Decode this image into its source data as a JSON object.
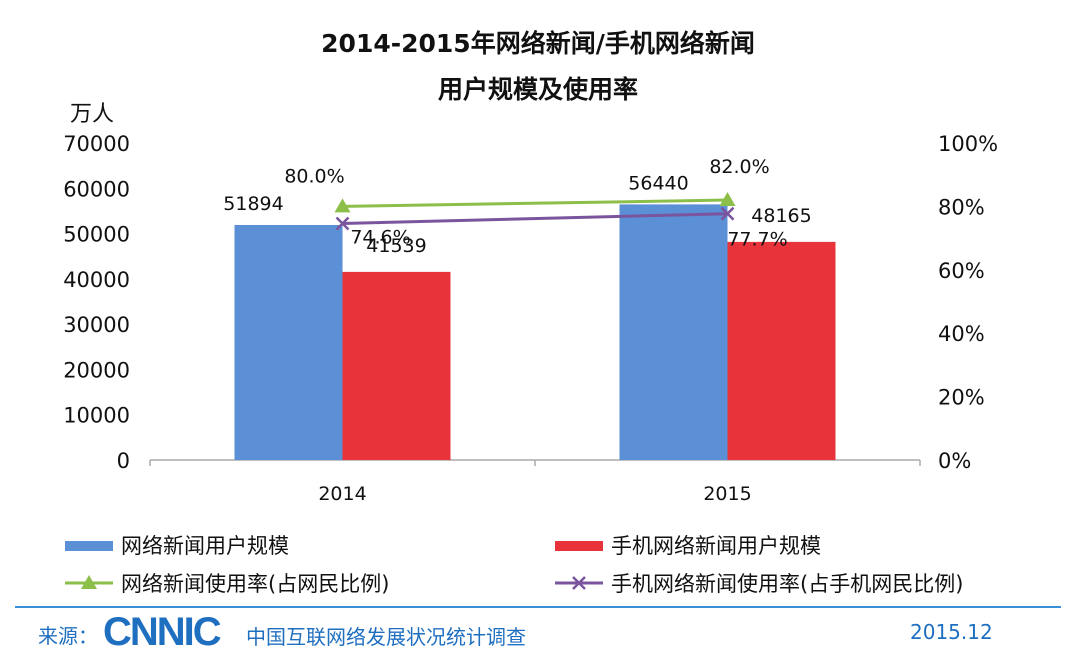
{
  "chart_data": {
    "type": "bar",
    "title": "2014-2015年网络新闻/手机网络新闻",
    "subtitle": "用户规模及使用率",
    "ylabel": "万人",
    "categories": [
      "2014",
      "2015"
    ],
    "ylim": [
      0,
      70000
    ],
    "y_ticks": [
      "70000",
      "60000",
      "50000",
      "40000",
      "30000",
      "20000",
      "10000",
      "0"
    ],
    "y2lim": [
      0,
      100
    ],
    "y2_ticks": [
      "100%",
      "80%",
      "60%",
      "40%",
      "20%",
      "0%"
    ],
    "series": [
      {
        "name": "网络新闻用户规模",
        "kind": "bar",
        "axis": "left",
        "color": "#5b8fd6",
        "values": [
          51894,
          56440
        ],
        "labels": [
          "51894",
          "56440"
        ]
      },
      {
        "name": "手机网络新闻用户规模",
        "kind": "bar",
        "axis": "left",
        "color": "#e8333b",
        "values": [
          41539,
          48165
        ],
        "labels": [
          "41539",
          "48165"
        ]
      },
      {
        "name": "网络新闻使用率(占网民比例)",
        "kind": "line",
        "axis": "right",
        "marker": "triangle",
        "color": "#8cbf4a",
        "values": [
          80.0,
          82.0
        ],
        "labels": [
          "80.0%",
          "82.0%"
        ]
      },
      {
        "name": "手机网络新闻使用率(占手机网民比例)",
        "kind": "line",
        "axis": "right",
        "marker": "x",
        "color": "#7a559e",
        "values": [
          74.6,
          77.7
        ],
        "labels": [
          "74.6%",
          "77.7%"
        ]
      }
    ],
    "legend_position": "bottom",
    "grid": false
  },
  "footer": {
    "source_label": "来源：",
    "logo_text": "CNNIC",
    "org": "中国互联网络发展状况统计调查",
    "date": "2015.12"
  }
}
